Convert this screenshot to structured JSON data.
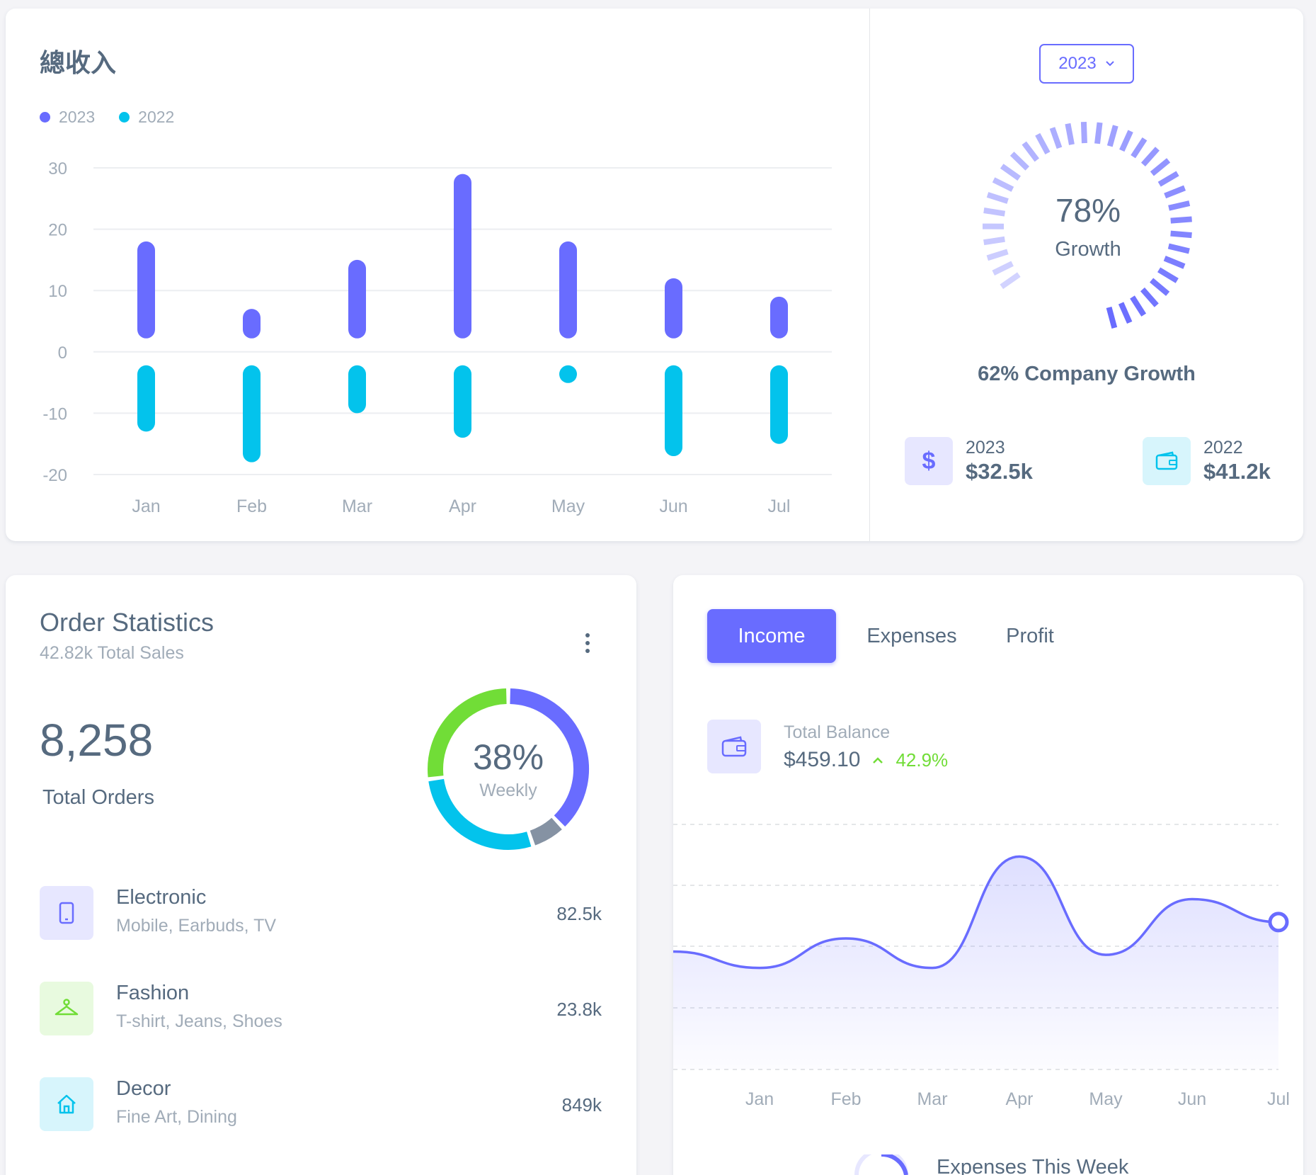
{
  "revenue": {
    "title": "總收入",
    "legend": [
      {
        "label": "2023",
        "color": "#696cff"
      },
      {
        "label": "2022",
        "color": "#03c3ec"
      }
    ],
    "more_icon": "more-vertical-icon"
  },
  "chart_data": [
    {
      "type": "bar",
      "title": "總收入",
      "categories": [
        "Jan",
        "Feb",
        "Mar",
        "Apr",
        "May",
        "Jun",
        "Jul"
      ],
      "series": [
        {
          "name": "2023",
          "values": [
            18,
            7,
            15,
            29,
            18,
            12,
            9
          ],
          "color": "#696cff"
        },
        {
          "name": "2022",
          "values": [
            -13,
            -18,
            -10,
            -14,
            -5,
            -17,
            -15
          ],
          "color": "#03c3ec"
        }
      ],
      "ylim": [
        -20,
        30
      ],
      "yticks": [
        30,
        20,
        10,
        0,
        -10,
        -20
      ],
      "grid": true,
      "legend": "top-left"
    },
    {
      "type": "area",
      "categories": [
        "Jan",
        "Feb",
        "Mar",
        "Apr",
        "May",
        "Jun",
        "Jul"
      ],
      "series": [
        {
          "values": [
            31,
            40,
            31,
            65,
            35,
            52,
            45
          ],
          "color": "#696cff"
        }
      ],
      "grid": true
    }
  ],
  "growth": {
    "year_select": "2023",
    "percent": "78%",
    "label": "Growth",
    "value": 0.78,
    "company_growth": "62% Company Growth",
    "stats": [
      {
        "year": "2023",
        "amount": "$32.5k",
        "icon": "dollar-icon",
        "color": "#696cff",
        "bg": "#e7e7ff"
      },
      {
        "year": "2022",
        "amount": "$41.2k",
        "icon": "wallet-icon",
        "color": "#03c3ec",
        "bg": "#d7f5fc"
      }
    ]
  },
  "orders": {
    "title": "Order Statistics",
    "subtitle": "42.82k Total Sales",
    "total": "8,258",
    "total_label": "Total Orders",
    "donut": {
      "percent": "38%",
      "label": "Weekly",
      "segments": [
        {
          "value": 38,
          "color": "#696cff"
        },
        {
          "value": 7,
          "color": "#8592a3"
        },
        {
          "value": 28,
          "color": "#03c3ec"
        },
        {
          "value": 27,
          "color": "#71dd37"
        }
      ]
    },
    "items": [
      {
        "name": "Electronic",
        "desc": "Mobile, Earbuds, TV",
        "value": "82.5k",
        "icon": "mobile-icon",
        "color": "#696cff",
        "bg": "#e7e7ff"
      },
      {
        "name": "Fashion",
        "desc": "T-shirt, Jeans, Shoes",
        "value": "23.8k",
        "icon": "hanger-icon",
        "color": "#71dd37",
        "bg": "#e8fadf"
      },
      {
        "name": "Decor",
        "desc": "Fine Art, Dining",
        "value": "849k",
        "icon": "home-icon",
        "color": "#03c3ec",
        "bg": "#d7f5fc"
      }
    ]
  },
  "income": {
    "tabs": [
      "Income",
      "Expenses",
      "Profit"
    ],
    "active_tab": 0,
    "balance_label": "Total Balance",
    "balance": "$459.10",
    "change": "42.9%",
    "footer_title": "Expenses This Week"
  }
}
